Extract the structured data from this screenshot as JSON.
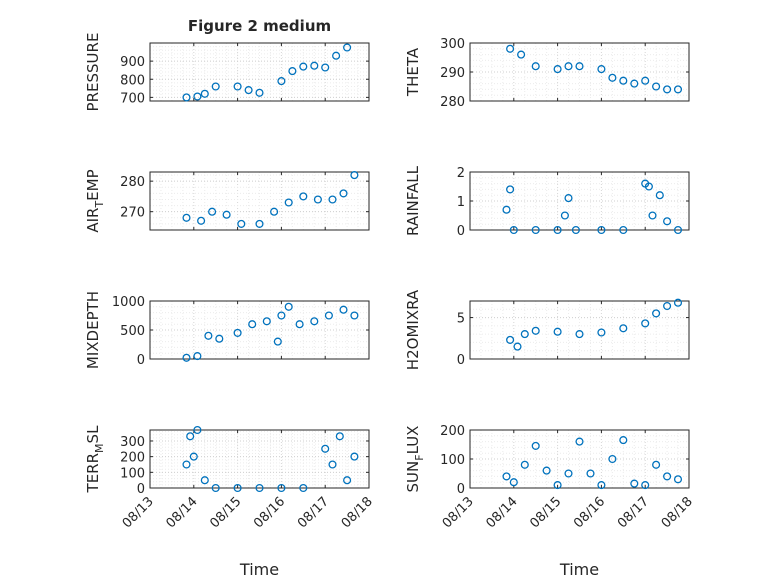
{
  "figure": {
    "title": "Figure 2 medium",
    "xlabel": "Time",
    "marker_color": "#0072BD",
    "grid": true,
    "grid_style": "dotted"
  },
  "chart_data": [
    {
      "type": "scatter",
      "marker": "open-circle",
      "ylabel": "PRESSURE",
      "xlim": [
        "08/13",
        "08/18"
      ],
      "ylim": [
        680,
        1000
      ],
      "yticks": [
        700,
        800,
        900
      ],
      "xtick_labels": [],
      "x": [
        "08/13 20:00",
        "08/14 02:00",
        "08/14 06:00",
        "08/14 12:00",
        "08/15 00:00",
        "08/15 06:00",
        "08/15 12:00",
        "08/16 00:00",
        "08/16 06:00",
        "08/16 12:00",
        "08/16 18:00",
        "08/17 00:00",
        "08/17 06:00",
        "08/17 12:00"
      ],
      "y": [
        700,
        705,
        720,
        760,
        760,
        740,
        725,
        790,
        845,
        870,
        875,
        865,
        930,
        975
      ]
    },
    {
      "type": "scatter",
      "marker": "open-circle",
      "ylabel": "THETA",
      "xlim": [
        "08/13",
        "08/18"
      ],
      "ylim": [
        280,
        300
      ],
      "yticks": [
        280,
        290,
        300
      ],
      "xtick_labels": [],
      "x": [
        "08/13 22:00",
        "08/14 04:00",
        "08/14 12:00",
        "08/15 00:00",
        "08/15 06:00",
        "08/15 12:00",
        "08/16 00:00",
        "08/16 06:00",
        "08/16 12:00",
        "08/16 18:00",
        "08/17 00:00",
        "08/17 06:00",
        "08/17 12:00",
        "08/17 18:00"
      ],
      "y": [
        298,
        296,
        292,
        291,
        292,
        292,
        291,
        288,
        287,
        286,
        287,
        285,
        284,
        284
      ]
    },
    {
      "type": "scatter",
      "marker": "open-circle",
      "ylabel": "AIR_TEMP",
      "ylabel_parts": [
        "AIR",
        "T",
        "EMP"
      ],
      "xlim": [
        "08/13",
        "08/18"
      ],
      "ylim": [
        264,
        283
      ],
      "yticks": [
        270,
        280
      ],
      "xtick_labels": [],
      "x": [
        "08/13 20:00",
        "08/14 04:00",
        "08/14 10:00",
        "08/14 18:00",
        "08/15 02:00",
        "08/15 12:00",
        "08/15 20:00",
        "08/16 04:00",
        "08/16 12:00",
        "08/16 20:00",
        "08/17 04:00",
        "08/17 10:00",
        "08/17 16:00"
      ],
      "y": [
        268,
        267,
        270,
        269,
        266,
        266,
        270,
        273,
        275,
        274,
        274,
        276,
        282
      ]
    },
    {
      "type": "scatter",
      "marker": "open-circle",
      "ylabel": "RAINFALL",
      "xlim": [
        "08/13",
        "08/18"
      ],
      "ylim": [
        0,
        2
      ],
      "yticks": [
        0,
        1,
        2
      ],
      "xtick_labels": [],
      "x": [
        "08/13 20:00",
        "08/13 22:00",
        "08/14 00:00",
        "08/14 12:00",
        "08/15 00:00",
        "08/15 04:00",
        "08/15 06:00",
        "08/15 10:00",
        "08/16 00:00",
        "08/16 12:00",
        "08/17 00:00",
        "08/17 02:00",
        "08/17 04:00",
        "08/17 08:00",
        "08/17 12:00",
        "08/17 18:00"
      ],
      "y": [
        0.7,
        1.4,
        0.0,
        0.0,
        0.0,
        0.5,
        1.1,
        0.0,
        0.0,
        0.0,
        1.6,
        1.5,
        0.5,
        1.2,
        0.3,
        0.0
      ]
    },
    {
      "type": "scatter",
      "marker": "open-circle",
      "ylabel": "MIXDEPTH",
      "xlim": [
        "08/13",
        "08/18"
      ],
      "ylim": [
        0,
        1000
      ],
      "yticks": [
        0,
        500,
        1000
      ],
      "xtick_labels": [],
      "x": [
        "08/13 20:00",
        "08/14 02:00",
        "08/14 08:00",
        "08/14 14:00",
        "08/15 00:00",
        "08/15 08:00",
        "08/15 16:00",
        "08/15 22:00",
        "08/16 00:00",
        "08/16 04:00",
        "08/16 10:00",
        "08/16 18:00",
        "08/17 02:00",
        "08/17 10:00",
        "08/17 16:00"
      ],
      "y": [
        20,
        50,
        400,
        350,
        450,
        600,
        650,
        300,
        750,
        900,
        600,
        650,
        750,
        850,
        750
      ]
    },
    {
      "type": "scatter",
      "marker": "open-circle",
      "ylabel": "H2OMIXRA",
      "xlim": [
        "08/13",
        "08/18"
      ],
      "ylim": [
        0,
        7
      ],
      "yticks": [
        0,
        5
      ],
      "xtick_labels": [],
      "x": [
        "08/13 22:00",
        "08/14 02:00",
        "08/14 06:00",
        "08/14 12:00",
        "08/15 00:00",
        "08/15 12:00",
        "08/16 00:00",
        "08/16 12:00",
        "08/17 00:00",
        "08/17 06:00",
        "08/17 12:00",
        "08/17 18:00"
      ],
      "y": [
        2.3,
        1.5,
        3.0,
        3.4,
        3.3,
        3.0,
        3.2,
        3.7,
        4.3,
        5.5,
        6.4,
        6.8
      ]
    },
    {
      "type": "scatter",
      "marker": "open-circle",
      "ylabel": "TERR_MSL",
      "ylabel_parts": [
        "TERR",
        "M",
        "SL"
      ],
      "xlim": [
        "08/13",
        "08/18"
      ],
      "ylim": [
        0,
        370
      ],
      "yticks": [
        0,
        100,
        200,
        300
      ],
      "xtick_labels": [
        "08/13",
        "08/14",
        "08/15",
        "08/16",
        "08/17",
        "08/18"
      ],
      "x": [
        "08/13 20:00",
        "08/13 22:00",
        "08/14 00:00",
        "08/14 02:00",
        "08/14 06:00",
        "08/14 12:00",
        "08/15 00:00",
        "08/15 12:00",
        "08/16 00:00",
        "08/16 12:00",
        "08/17 00:00",
        "08/17 04:00",
        "08/17 08:00",
        "08/17 12:00",
        "08/17 16:00"
      ],
      "y": [
        150,
        330,
        200,
        370,
        50,
        0,
        0,
        0,
        0,
        0,
        250,
        150,
        330,
        50,
        200
      ]
    },
    {
      "type": "scatter",
      "marker": "open-circle",
      "ylabel": "SUN_FLUX",
      "ylabel_parts": [
        "SUN",
        "F",
        "LUX"
      ],
      "xlim": [
        "08/13",
        "08/18"
      ],
      "ylim": [
        0,
        200
      ],
      "yticks": [
        0,
        100,
        200
      ],
      "xtick_labels": [
        "08/13",
        "08/14",
        "08/15",
        "08/16",
        "08/17",
        "08/18"
      ],
      "x": [
        "08/13 20:00",
        "08/14 00:00",
        "08/14 06:00",
        "08/14 12:00",
        "08/14 18:00",
        "08/15 00:00",
        "08/15 06:00",
        "08/15 12:00",
        "08/15 18:00",
        "08/16 00:00",
        "08/16 06:00",
        "08/16 12:00",
        "08/16 18:00",
        "08/17 00:00",
        "08/17 06:00",
        "08/17 12:00",
        "08/17 18:00"
      ],
      "y": [
        40,
        20,
        80,
        145,
        60,
        10,
        50,
        160,
        50,
        10,
        100,
        165,
        15,
        10,
        80,
        40,
        30
      ]
    }
  ]
}
